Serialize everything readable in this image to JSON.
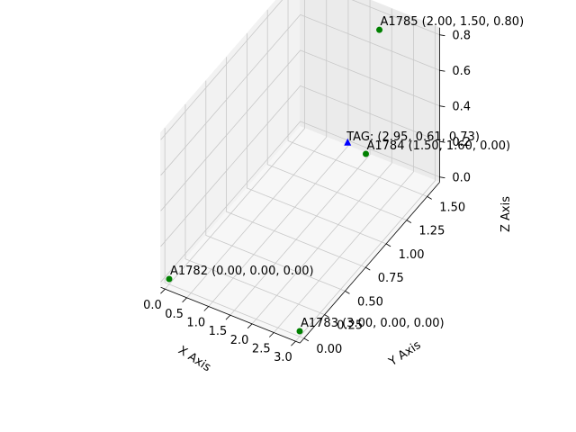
{
  "chart_data": {
    "type": "scatter",
    "projection": "3d",
    "xlabel": "X Axis",
    "ylabel": "Y Axis",
    "zlabel": "Z Axis",
    "xlim": [
      0,
      3
    ],
    "ylim": [
      0,
      1.6
    ],
    "zlim": [
      0,
      0.8
    ],
    "x_ticks": [
      "0.0",
      "0.5",
      "1.0",
      "1.5",
      "2.0",
      "2.5",
      "3.0"
    ],
    "y_ticks": [
      "0.00",
      "0.25",
      "0.50",
      "0.75",
      "1.00",
      "1.25",
      "1.50"
    ],
    "z_ticks": [
      "0.0",
      "0.2",
      "0.4",
      "0.6",
      "0.8"
    ],
    "grid": true,
    "anchors": [
      {
        "label": "A1782 (0.00, 0.00, 0.00)",
        "x": 0,
        "y": 0,
        "z": 0,
        "color": "#008000",
        "marker": "circle"
      },
      {
        "label": "A1783 (3.00, 0.00, 0.00)",
        "x": 3,
        "y": 0,
        "z": 0,
        "color": "#008000",
        "marker": "circle"
      },
      {
        "label": "A1784 (1.50, 1.60, 0.00)",
        "x": 1.5,
        "y": 1.6,
        "z": 0,
        "color": "#008000",
        "marker": "circle"
      },
      {
        "label": "A1785 (2.00, 1.50, 0.80)",
        "x": 2,
        "y": 1.5,
        "z": 0.8,
        "color": "#008000",
        "marker": "circle"
      }
    ],
    "tag": {
      "label": "TAG: (2.95, 0.61, 0.73)",
      "x": 2.95,
      "y": 0.61,
      "z": 0.73,
      "color": "#0000ff",
      "marker": "triangle"
    }
  }
}
